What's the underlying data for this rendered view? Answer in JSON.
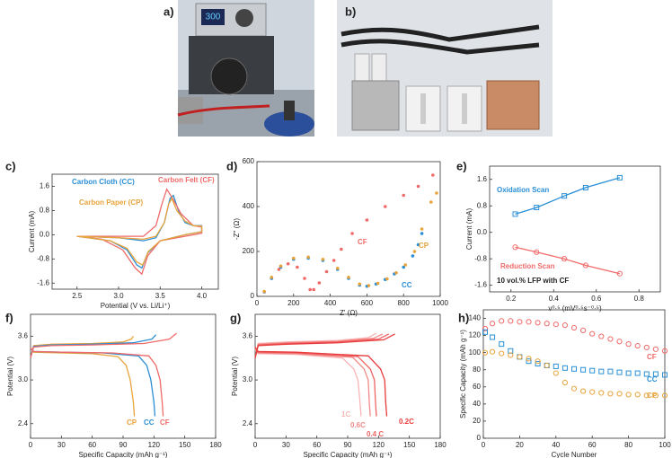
{
  "photos": [
    {
      "label": "a)"
    },
    {
      "label": "b)"
    }
  ],
  "chart_data": [
    {
      "type": "line",
      "label": "c)",
      "xlabel": "Potential (V vs. Li/Li⁺)",
      "ylabel": "Current (mA)",
      "xlim": [
        2.2,
        4.2
      ],
      "ylim": [
        -1.8,
        2.0
      ],
      "xticks": [
        2.5,
        {
          "value": 3,
          "label": "3.0"
        },
        3.5,
        {
          "value": 4,
          "label": "4.0"
        }
      ],
      "yticks": [
        -1.6,
        -0.8,
        {
          "value": 0,
          "label": "0.0"
        },
        0.8,
        1.6
      ],
      "series": [
        {
          "name": "Carbon Cloth (CC)",
          "color": "#2a8fd6",
          "x": [
            2.5,
            3.0,
            3.3,
            3.45,
            3.55,
            3.62,
            3.66,
            3.72,
            3.8,
            3.9,
            4.0,
            4.0,
            3.8,
            3.5,
            3.35,
            3.28,
            3.22,
            3.1,
            2.9,
            2.5
          ],
          "values": [
            -0.05,
            -0.1,
            -0.2,
            -0.1,
            0.4,
            1.2,
            1.3,
            0.8,
            0.4,
            0.3,
            0.3,
            0.1,
            0.0,
            -0.2,
            -0.6,
            -1.1,
            -1.0,
            -0.5,
            -0.2,
            -0.05
          ]
        },
        {
          "name": "Carbon Felt (CF)",
          "color": "#f06a6a",
          "x": [
            2.5,
            3.0,
            3.3,
            3.45,
            3.52,
            3.58,
            3.65,
            3.75,
            3.9,
            4.0,
            4.0,
            3.8,
            3.5,
            3.35,
            3.28,
            3.2,
            3.05,
            2.8,
            2.5
          ],
          "values": [
            -0.05,
            -0.05,
            -0.05,
            0.3,
            1.0,
            1.5,
            1.2,
            0.7,
            0.3,
            0.25,
            0.05,
            -0.05,
            -0.2,
            -0.7,
            -1.3,
            -1.1,
            -0.5,
            -0.15,
            -0.05
          ]
        },
        {
          "name": "Carbon Paper (CP)",
          "color": "#e8a33a",
          "x": [
            2.5,
            3.0,
            3.3,
            3.45,
            3.55,
            3.6,
            3.64,
            3.7,
            3.8,
            3.9,
            4.0,
            4.0,
            3.8,
            3.5,
            3.36,
            3.29,
            3.22,
            3.1,
            2.9,
            2.5
          ],
          "values": [
            -0.05,
            -0.1,
            -0.15,
            -0.05,
            0.4,
            1.0,
            1.2,
            0.8,
            0.45,
            0.3,
            0.28,
            0.1,
            0.0,
            -0.2,
            -0.55,
            -1.0,
            -0.9,
            -0.45,
            -0.2,
            -0.05
          ]
        }
      ]
    },
    {
      "type": "scatter",
      "label": "d)",
      "xlabel": "Z' (Ω)",
      "ylabel": "-Z'' (Ω)",
      "xlim": [
        0,
        1000
      ],
      "ylim": [
        0,
        600
      ],
      "xticks": [
        0,
        200,
        400,
        600,
        800,
        1000
      ],
      "yticks": [
        0,
        200,
        400,
        600
      ],
      "series": [
        {
          "name": "CF",
          "color": "#f06a6a",
          "x": [
            40,
            80,
            120,
            170,
            220,
            260,
            290,
            310,
            340,
            380,
            420,
            460,
            520,
            600,
            700,
            800,
            880,
            960
          ],
          "values": [
            20,
            80,
            120,
            145,
            130,
            80,
            30,
            30,
            60,
            110,
            160,
            210,
            280,
            340,
            400,
            450,
            490,
            540
          ]
        },
        {
          "name": "CC",
          "color": "#2a8fd6",
          "x": [
            40,
            80,
            130,
            200,
            280,
            360,
            440,
            500,
            560,
            600,
            650,
            700,
            750,
            800,
            850,
            880,
            900
          ],
          "values": [
            20,
            80,
            130,
            165,
            170,
            160,
            120,
            80,
            50,
            45,
            55,
            75,
            100,
            130,
            180,
            230,
            280
          ]
        },
        {
          "name": "CP",
          "color": "#e8a33a",
          "x": [
            40,
            80,
            130,
            200,
            280,
            360,
            440,
            500,
            560,
            610,
            660,
            710,
            760,
            810,
            860,
            900,
            950,
            980
          ],
          "values": [
            22,
            85,
            135,
            170,
            175,
            165,
            125,
            85,
            55,
            48,
            58,
            78,
            105,
            140,
            200,
            300,
            420,
            460
          ]
        }
      ]
    },
    {
      "type": "line",
      "label": "e)",
      "xlabel": "v⁰·⁵ (mV⁰·⁵s⁻⁰·⁵)",
      "ylabel": "Current (mA)",
      "annotation": "10 vol.% LFP with CF",
      "xlim": [
        0.1,
        0.9
      ],
      "ylim": [
        -1.8,
        2.0
      ],
      "xticks": [
        0.2,
        0.4,
        0.6,
        0.8
      ],
      "yticks": [
        -1.6,
        -0.8,
        {
          "value": 0,
          "label": "0.0"
        },
        0.8,
        1.6
      ],
      "series": [
        {
          "name": "Oxidation Scan",
          "color": "#2a8fd6",
          "marker": "square",
          "x": [
            0.22,
            0.32,
            0.45,
            0.55,
            0.71
          ],
          "values": [
            0.55,
            0.75,
            1.1,
            1.35,
            1.65
          ]
        },
        {
          "name": "Reduction Scan",
          "color": "#f06a6a",
          "marker": "circle",
          "x": [
            0.22,
            0.32,
            0.45,
            0.55,
            0.71
          ],
          "values": [
            -0.45,
            -0.6,
            -0.8,
            -1.0,
            -1.25
          ]
        }
      ]
    },
    {
      "type": "line",
      "label": "f)",
      "xlabel": "Specific Capacity (mAh g⁻¹)",
      "ylabel": "Potential (V)",
      "xlim": [
        0,
        180
      ],
      "ylim": [
        2.2,
        3.9
      ],
      "xticks": [
        0,
        30,
        60,
        90,
        120,
        150,
        180
      ],
      "yticks": [
        2.4,
        {
          "value": 3,
          "label": "3.0"
        },
        3.6
      ],
      "series": [
        {
          "name": "CP",
          "color": "#e8a33a",
          "x": [
            0,
            3,
            20,
            60,
            90,
            98,
            100,
            null,
            0,
            3,
            30,
            60,
            85,
            93,
            97,
            100,
            101
          ],
          "values": [
            3.3,
            3.47,
            3.49,
            3.5,
            3.52,
            3.56,
            3.6,
            null,
            3.44,
            3.38,
            3.37,
            3.36,
            3.32,
            3.2,
            3.0,
            2.7,
            2.5
          ]
        },
        {
          "name": "CC",
          "color": "#2a8fd6",
          "x": [
            0,
            3,
            20,
            60,
            100,
            118,
            122,
            null,
            0,
            3,
            30,
            70,
            105,
            113,
            117,
            120,
            121
          ],
          "values": [
            3.3,
            3.46,
            3.48,
            3.49,
            3.51,
            3.56,
            3.62,
            null,
            3.44,
            3.39,
            3.38,
            3.37,
            3.33,
            3.2,
            3.0,
            2.7,
            2.5
          ]
        },
        {
          "name": "CF",
          "color": "#f06a6a",
          "x": [
            0,
            3,
            20,
            60,
            110,
            135,
            142,
            null,
            0,
            3,
            30,
            80,
            115,
            122,
            126,
            128,
            129
          ],
          "values": [
            3.3,
            3.45,
            3.47,
            3.48,
            3.5,
            3.56,
            3.64,
            null,
            3.44,
            3.39,
            3.38,
            3.37,
            3.33,
            3.2,
            3.0,
            2.7,
            2.5
          ]
        }
      ]
    },
    {
      "type": "line",
      "label": "g)",
      "xlabel": "Specific Capacity (mAh g⁻¹)",
      "ylabel": "Potential (V)",
      "xlim": [
        0,
        180
      ],
      "ylim": [
        2.2,
        3.9
      ],
      "xticks": [
        0,
        30,
        60,
        90,
        120,
        150,
        180
      ],
      "yticks": [
        2.4,
        {
          "value": 3,
          "label": "3.0"
        },
        3.6
      ],
      "series": [
        {
          "name": "1C",
          "color": "#f9b5b5",
          "x": [
            0,
            3,
            30,
            80,
            110,
            118,
            null,
            0,
            3,
            40,
            85,
            96,
            100,
            102,
            103
          ],
          "values": [
            3.3,
            3.5,
            3.52,
            3.54,
            3.58,
            3.64,
            null,
            3.42,
            3.36,
            3.35,
            3.3,
            3.15,
            3.0,
            2.7,
            2.5
          ]
        },
        {
          "name": "0.6C",
          "color": "#f48a8a",
          "x": [
            0,
            3,
            30,
            80,
            115,
            124,
            null,
            0,
            3,
            40,
            95,
            106,
            110,
            111,
            112
          ],
          "values": [
            3.3,
            3.49,
            3.51,
            3.53,
            3.57,
            3.63,
            null,
            3.43,
            3.37,
            3.36,
            3.31,
            3.15,
            3.0,
            2.7,
            2.5
          ]
        },
        {
          "name": "0.4 C",
          "color": "#ef6464",
          "x": [
            0,
            3,
            30,
            80,
            120,
            130,
            null,
            0,
            3,
            40,
            100,
            112,
            116,
            117,
            118
          ],
          "values": [
            3.3,
            3.48,
            3.5,
            3.52,
            3.56,
            3.63,
            null,
            3.44,
            3.38,
            3.37,
            3.32,
            3.15,
            3.0,
            2.7,
            2.5
          ]
        },
        {
          "name": "0.2C",
          "color": "#e83c3c",
          "x": [
            0,
            3,
            30,
            80,
            125,
            136,
            null,
            0,
            3,
            40,
            110,
            122,
            126,
            127,
            128
          ],
          "values": [
            3.3,
            3.47,
            3.49,
            3.51,
            3.55,
            3.63,
            null,
            3.45,
            3.39,
            3.38,
            3.33,
            3.15,
            3.0,
            2.7,
            2.5
          ]
        }
      ]
    },
    {
      "type": "scatter",
      "label": "h)",
      "xlabel": "Cycle Number",
      "ylabel": "Specific Capacity (mAh g⁻¹)",
      "xlim": [
        0,
        100
      ],
      "ylim": [
        0,
        150
      ],
      "xticks": [
        0,
        20,
        40,
        60,
        80,
        100
      ],
      "yticks": [
        0,
        20,
        40,
        60,
        80,
        100,
        120,
        140
      ],
      "series": [
        {
          "name": "CF",
          "color": "#f06a6a",
          "marker": "circle",
          "x": [
            1,
            5,
            10,
            15,
            20,
            25,
            30,
            35,
            40,
            45,
            50,
            55,
            60,
            65,
            70,
            75,
            80,
            85,
            90,
            95,
            100
          ],
          "values": [
            128,
            134,
            137,
            137,
            136,
            136,
            135,
            134,
            133,
            132,
            129,
            126,
            122,
            119,
            116,
            113,
            110,
            108,
            106,
            104,
            102
          ]
        },
        {
          "name": "CC",
          "color": "#2a8fd6",
          "marker": "square",
          "x": [
            1,
            5,
            10,
            15,
            20,
            25,
            30,
            35,
            40,
            45,
            50,
            55,
            60,
            65,
            70,
            75,
            80,
            85,
            90,
            95,
            100
          ],
          "values": [
            124,
            118,
            110,
            102,
            95,
            90,
            87,
            85,
            84,
            82,
            81,
            80,
            79,
            78,
            78,
            77,
            76,
            76,
            75,
            75,
            74
          ]
        },
        {
          "name": "CP",
          "color": "#e8a33a",
          "marker": "circle",
          "x": [
            1,
            5,
            10,
            15,
            20,
            25,
            30,
            35,
            40,
            45,
            50,
            55,
            60,
            65,
            70,
            75,
            80,
            85,
            90,
            95,
            100
          ],
          "values": [
            100,
            101,
            99,
            97,
            95,
            93,
            90,
            85,
            76,
            65,
            58,
            55,
            54,
            53,
            52,
            52,
            51,
            51,
            50,
            50,
            50
          ]
        }
      ]
    }
  ]
}
